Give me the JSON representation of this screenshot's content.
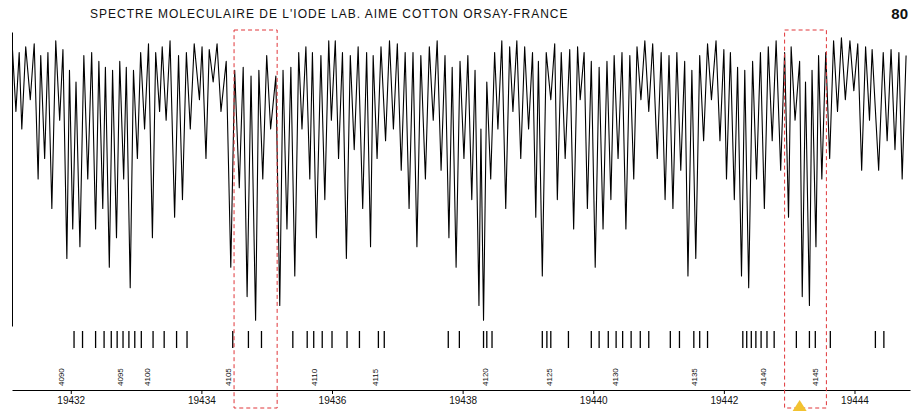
{
  "chart_data": {
    "type": "line",
    "title": "SPECTRE MOLECULAIRE DE L'IODE LAB. AIME COTTON ORSAY-FRANCE",
    "page": 80,
    "color": "#000000",
    "tick_labels": "x",
    "grid": false,
    "xlim": [
      19431.1,
      19444.85
    ],
    "ylim": [
      0,
      100
    ],
    "xticks": [
      19432,
      19434,
      19436,
      19438,
      19440,
      19442,
      19444
    ],
    "x": [
      19431.1,
      19431.16,
      19431.21,
      19431.25,
      19431.31,
      19431.38,
      19431.44,
      19431.5,
      19431.54,
      19431.6,
      19431.65,
      19431.71,
      19431.77,
      19431.83,
      19431.88,
      19431.94,
      19431.98,
      19432.03,
      19432.08,
      19432.14,
      19432.2,
      19432.26,
      19432.32,
      19432.38,
      19432.43,
      19432.49,
      19432.53,
      19432.59,
      19432.64,
      19432.7,
      19432.75,
      19432.81,
      19432.85,
      19432.91,
      19432.96,
      19433.02,
      19433.07,
      19433.13,
      19433.19,
      19433.25,
      19433.3,
      19433.36,
      19433.4,
      19433.46,
      19433.52,
      19433.59,
      19433.65,
      19433.71,
      19433.77,
      19433.83,
      19433.89,
      19433.97,
      19434.01,
      19434.07,
      19434.12,
      19434.18,
      19434.24,
      19434.3,
      19434.38,
      19434.45,
      19434.51,
      19434.58,
      19434.64,
      19434.7,
      19434.76,
      19434.83,
      19434.88,
      19434.94,
      19435.0,
      19435.06,
      19435.14,
      19435.2,
      19435.25,
      19435.31,
      19435.37,
      19435.43,
      19435.49,
      19435.54,
      19435.6,
      19435.66,
      19435.7,
      19435.76,
      19435.83,
      19435.89,
      19435.95,
      19435.99,
      19436.05,
      19436.1,
      19436.16,
      19436.22,
      19436.28,
      19436.34,
      19436.4,
      19436.47,
      19436.53,
      19436.59,
      19436.63,
      19436.69,
      19436.75,
      19436.82,
      19436.88,
      19436.94,
      19437.0,
      19437.06,
      19437.12,
      19437.18,
      19437.24,
      19437.3,
      19437.36,
      19437.43,
      19437.49,
      19437.55,
      19437.61,
      19437.67,
      19437.73,
      19437.79,
      19437.84,
      19437.9,
      19437.96,
      19438.02,
      19438.08,
      19438.14,
      19438.19,
      19438.25,
      19438.28,
      19438.32,
      19438.37,
      19438.43,
      19438.49,
      19438.54,
      19438.6,
      19438.66,
      19438.72,
      19438.77,
      19438.83,
      19438.89,
      19438.95,
      19439.01,
      19439.07,
      19439.12,
      19439.16,
      19439.22,
      19439.28,
      19439.35,
      19439.41,
      19439.45,
      19439.51,
      19439.57,
      19439.64,
      19439.7,
      19439.76,
      19439.8,
      19439.86,
      19439.91,
      19439.97,
      19440.03,
      19440.09,
      19440.15,
      19440.21,
      19440.27,
      19440.32,
      19440.38,
      19440.44,
      19440.5,
      19440.56,
      19440.62,
      19440.67,
      19440.73,
      19440.79,
      19440.85,
      19440.91,
      19440.98,
      19441.04,
      19441.1,
      19441.16,
      19441.22,
      19441.28,
      19441.34,
      19441.4,
      19441.45,
      19441.51,
      19441.57,
      19441.63,
      19441.69,
      19441.75,
      19441.81,
      19441.88,
      19441.94,
      19442.0,
      19442.04,
      19442.1,
      19442.16,
      19442.21,
      19442.27,
      19442.32,
      19442.38,
      19442.44,
      19442.5,
      19442.56,
      19442.62,
      19442.68,
      19442.74,
      19442.8,
      19442.87,
      19442.93,
      19442.99,
      19443.03,
      19443.09,
      19443.16,
      19443.2,
      19443.25,
      19443.31,
      19443.35,
      19443.41,
      19443.45,
      19443.5,
      19443.56,
      19443.62,
      19443.68,
      19443.74,
      19443.8,
      19443.86,
      19443.93,
      19443.99,
      19444.05,
      19444.11,
      19444.17,
      19444.23,
      19444.27,
      19444.37,
      19444.44,
      19444.5,
      19444.56,
      19444.62,
      19444.68,
      19444.73,
      19444.79
    ],
    "values": [
      97,
      73,
      93,
      67,
      95,
      77,
      96,
      50,
      92,
      57,
      93,
      40,
      97,
      70,
      94,
      23,
      87,
      33,
      83,
      27,
      92,
      50,
      93,
      33,
      90,
      40,
      88,
      20,
      87,
      30,
      90,
      50,
      88,
      13,
      87,
      57,
      93,
      67,
      96,
      30,
      93,
      73,
      95,
      70,
      97,
      37,
      92,
      43,
      93,
      67,
      96,
      77,
      95,
      57,
      94,
      83,
      96,
      73,
      90,
      20,
      87,
      47,
      88,
      10,
      85,
      2,
      87,
      50,
      92,
      67,
      85,
      7,
      87,
      33,
      88,
      17,
      93,
      67,
      95,
      50,
      93,
      30,
      92,
      43,
      97,
      70,
      97,
      57,
      93,
      23,
      92,
      60,
      95,
      40,
      93,
      27,
      92,
      57,
      95,
      63,
      97,
      67,
      96,
      53,
      93,
      40,
      93,
      27,
      92,
      50,
      95,
      70,
      97,
      53,
      92,
      30,
      88,
      20,
      90,
      57,
      92,
      43,
      87,
      7,
      67,
      2,
      83,
      50,
      93,
      67,
      97,
      40,
      95,
      73,
      97,
      57,
      95,
      67,
      93,
      37,
      90,
      17,
      93,
      77,
      96,
      43,
      93,
      57,
      94,
      33,
      95,
      77,
      93,
      40,
      90,
      20,
      88,
      33,
      90,
      43,
      92,
      57,
      93,
      33,
      92,
      50,
      95,
      77,
      97,
      73,
      96,
      57,
      93,
      43,
      92,
      40,
      93,
      53,
      90,
      17,
      87,
      23,
      92,
      63,
      96,
      77,
      97,
      63,
      94,
      50,
      93,
      43,
      88,
      17,
      87,
      13,
      90,
      50,
      93,
      40,
      95,
      63,
      97,
      53,
      93,
      37,
      95,
      70,
      90,
      10,
      83,
      7,
      87,
      27,
      92,
      50,
      93,
      57,
      97,
      73,
      98,
      77,
      97,
      80,
      96,
      53,
      95,
      70,
      94,
      53,
      93,
      63,
      94,
      60,
      93,
      50,
      92
    ],
    "line_positions": [
      19432.05,
      19432.18,
      19432.38,
      19432.51,
      19432.62,
      19432.71,
      19432.8,
      19432.89,
      19432.98,
      19433.08,
      19433.26,
      19433.43,
      19433.62,
      19433.78,
      19434.48,
      19434.72,
      19434.92,
      19435.4,
      19435.62,
      19435.72,
      19435.85,
      19436.0,
      19436.23,
      19436.42,
      19436.71,
      19436.8,
      19437.78,
      19437.95,
      19438.32,
      19438.37,
      19438.45,
      19439.22,
      19439.29,
      19439.35,
      19439.62,
      19439.97,
      19440.09,
      19440.23,
      19440.35,
      19440.45,
      19440.58,
      19440.72,
      19440.85,
      19441.18,
      19441.32,
      19441.54,
      19441.63,
      19441.75,
      19442.29,
      19442.35,
      19442.42,
      19442.49,
      19442.57,
      19442.66,
      19442.77,
      19443.11,
      19443.31,
      19443.4,
      19443.63,
      19444.32,
      19444.45
    ],
    "line_labels": {
      "x": [
        19431.85,
        19432.75,
        19433.17,
        19434.41,
        19435.72,
        19436.66,
        19438.35,
        19439.33,
        19440.33,
        19441.55,
        19442.6,
        19443.4
      ],
      "numbers": [
        4090,
        4095,
        4100,
        4105,
        4110,
        4115,
        4120,
        4125,
        4130,
        4135,
        4140,
        4145
      ]
    },
    "highlights": [
      [
        19434.5,
        19435.16
      ],
      [
        19442.93,
        19443.57
      ]
    ],
    "pointer_x": 19443.16
  }
}
